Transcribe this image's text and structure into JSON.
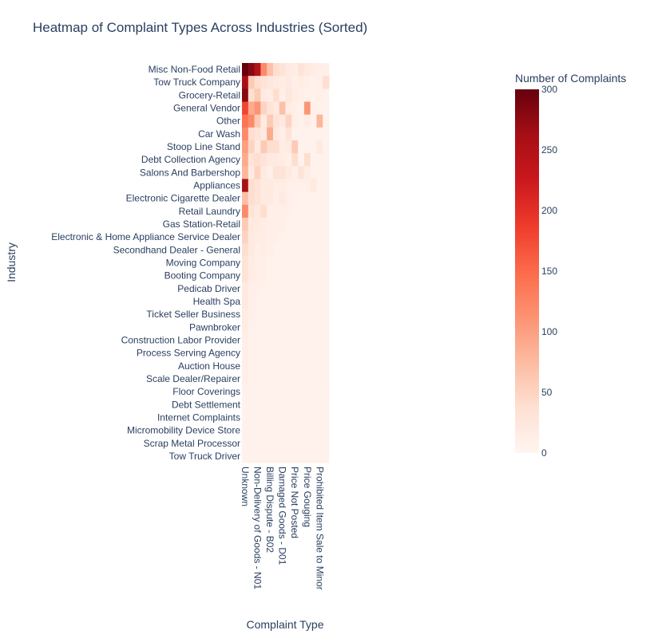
{
  "chart_data": {
    "type": "heatmap",
    "title": "Heatmap of Complaint Types Across Industries (Sorted)",
    "xlabel": "Complaint Type",
    "ylabel": "Industry",
    "colorbar": {
      "title": "Number of Complaints",
      "min": 0,
      "max": 300,
      "ticks": [
        0,
        50,
        100,
        150,
        200,
        250,
        300
      ],
      "colorscale": [
        "#fff5f0",
        "#fee0d2",
        "#fcbba1",
        "#fc9272",
        "#fb6a4a",
        "#ef3b2c",
        "#cb181d",
        "#a50f15",
        "#67000d"
      ]
    },
    "x_tick_labels": [
      "Unknown",
      "Non-Delivery of Goods - N01",
      "Billing Dispute - B02",
      "Damaged Goods - D01",
      "Price Not Posted",
      "Price Gouging",
      "Prohibited Item Sale to Minor"
    ],
    "x_tick_columns": [
      0,
      2,
      4,
      6,
      8,
      10,
      12
    ],
    "n_columns": 14,
    "y_tick_labels": [
      "Misc Non-Food Retail",
      "Tow Truck Company",
      "Grocery-Retail",
      "General Vendor",
      "Other",
      "Car Wash",
      "Stoop Line Stand",
      "Debt Collection Agency",
      "Salons And Barbershop",
      "Appliances",
      "Electronic Cigarette Dealer",
      "Retail Laundry",
      "Gas Station-Retail",
      "Electronic & Home Appliance Service Dealer",
      "Secondhand Dealer - General",
      "Moving Company",
      "Booting Company",
      "Pedicab Driver",
      "Health Spa",
      "Ticket Seller Business",
      "Pawnbroker",
      "Construction Labor Provider",
      "Process Serving Agency",
      "Auction House",
      "Scale Dealer/Repairer",
      "Floor Coverings",
      "Debt Settlement",
      "Internet Complaints",
      "Micromobility Device Store",
      "Scrap Metal Processor",
      "Tow Truck Driver"
    ],
    "row_values": [
      [
        300,
        280,
        250,
        120,
        70,
        40,
        30,
        20,
        15,
        30,
        20,
        15,
        10,
        10
      ],
      [
        260,
        60,
        40,
        30,
        25,
        20,
        15,
        20,
        10,
        15,
        10,
        5,
        10,
        40
      ],
      [
        280,
        40,
        60,
        20,
        15,
        40,
        10,
        25,
        15,
        10,
        5,
        5,
        10,
        5
      ],
      [
        180,
        90,
        110,
        50,
        30,
        20,
        70,
        15,
        10,
        5,
        110,
        10,
        5,
        5
      ],
      [
        140,
        120,
        60,
        20,
        60,
        30,
        20,
        50,
        10,
        5,
        15,
        5,
        80,
        5
      ],
      [
        120,
        40,
        30,
        20,
        90,
        20,
        10,
        30,
        5,
        5,
        5,
        5,
        5,
        5
      ],
      [
        100,
        50,
        20,
        60,
        40,
        40,
        15,
        20,
        60,
        5,
        5,
        5,
        20,
        5
      ],
      [
        90,
        30,
        40,
        30,
        20,
        20,
        15,
        10,
        40,
        5,
        40,
        5,
        5,
        5
      ],
      [
        80,
        20,
        50,
        20,
        10,
        30,
        30,
        20,
        10,
        30,
        15,
        5,
        5,
        5
      ],
      [
        260,
        40,
        30,
        20,
        20,
        15,
        15,
        10,
        10,
        10,
        10,
        20,
        5,
        5
      ],
      [
        70,
        40,
        30,
        20,
        20,
        10,
        20,
        10,
        5,
        5,
        5,
        5,
        5,
        5
      ],
      [
        120,
        30,
        20,
        40,
        10,
        10,
        10,
        10,
        5,
        5,
        5,
        5,
        5,
        5
      ],
      [
        60,
        20,
        20,
        15,
        10,
        10,
        10,
        5,
        5,
        5,
        5,
        5,
        5,
        5
      ],
      [
        50,
        20,
        15,
        15,
        10,
        10,
        5,
        5,
        5,
        5,
        5,
        5,
        5,
        5
      ],
      [
        40,
        20,
        10,
        15,
        10,
        5,
        5,
        5,
        5,
        5,
        5,
        5,
        5,
        5
      ],
      [
        30,
        15,
        10,
        10,
        5,
        5,
        5,
        5,
        5,
        5,
        5,
        5,
        5,
        5
      ],
      [
        30,
        15,
        10,
        10,
        5,
        5,
        5,
        5,
        5,
        5,
        5,
        5,
        5,
        5
      ],
      [
        20,
        10,
        10,
        5,
        5,
        5,
        5,
        5,
        5,
        5,
        5,
        5,
        5,
        5
      ],
      [
        20,
        10,
        5,
        5,
        5,
        5,
        5,
        5,
        5,
        5,
        5,
        5,
        5,
        5
      ],
      [
        15,
        10,
        5,
        5,
        5,
        5,
        5,
        5,
        5,
        5,
        5,
        5,
        5,
        5
      ],
      [
        15,
        5,
        5,
        5,
        5,
        5,
        5,
        5,
        5,
        5,
        5,
        5,
        5,
        5
      ],
      [
        10,
        5,
        5,
        5,
        5,
        5,
        5,
        5,
        5,
        5,
        5,
        5,
        5,
        5
      ],
      [
        10,
        5,
        5,
        5,
        5,
        5,
        5,
        5,
        5,
        5,
        5,
        5,
        5,
        5
      ],
      [
        10,
        5,
        5,
        5,
        5,
        5,
        5,
        5,
        5,
        5,
        5,
        5,
        5,
        5
      ],
      [
        10,
        5,
        5,
        5,
        5,
        5,
        5,
        5,
        5,
        5,
        5,
        5,
        5,
        5
      ],
      [
        5,
        5,
        5,
        5,
        5,
        5,
        5,
        5,
        5,
        5,
        5,
        5,
        5,
        5
      ],
      [
        5,
        5,
        5,
        5,
        5,
        5,
        5,
        5,
        5,
        5,
        5,
        5,
        5,
        5
      ],
      [
        5,
        5,
        5,
        5,
        5,
        5,
        5,
        5,
        5,
        5,
        5,
        5,
        5,
        5
      ],
      [
        5,
        5,
        5,
        5,
        5,
        5,
        5,
        5,
        5,
        5,
        5,
        5,
        5,
        5
      ],
      [
        5,
        5,
        5,
        5,
        5,
        5,
        5,
        5,
        5,
        5,
        5,
        5,
        5,
        5
      ],
      [
        5,
        5,
        5,
        5,
        5,
        5,
        5,
        5,
        5,
        5,
        5,
        5,
        5,
        5
      ]
    ]
  }
}
